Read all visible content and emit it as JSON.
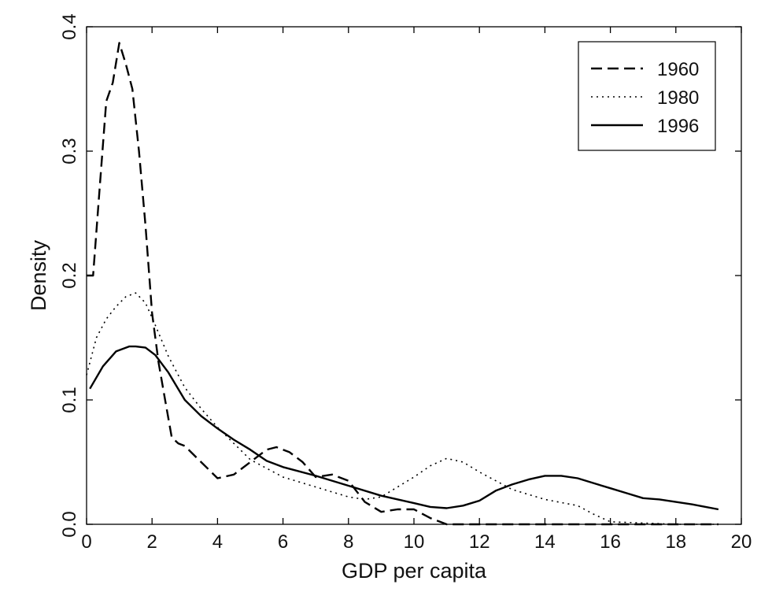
{
  "chart_data": {
    "type": "line",
    "title": "",
    "xlabel": "GDP per capita",
    "ylabel": "Density",
    "xlim": [
      0,
      20
    ],
    "ylim": [
      0,
      0.4
    ],
    "x_ticks": [
      0,
      2,
      4,
      6,
      8,
      10,
      12,
      14,
      16,
      18,
      20
    ],
    "x_tick_labels": [
      "0",
      "2",
      "4",
      "6",
      "8",
      "10",
      "12",
      "14",
      "16",
      "18",
      "20"
    ],
    "y_ticks": [
      0,
      0.1,
      0.2,
      0.3,
      0.4
    ],
    "y_tick_labels": [
      "0.0",
      "0.1",
      "0.2",
      "0.3",
      "0.4"
    ],
    "grid": false,
    "legend_position": "top-right",
    "series": [
      {
        "name": "1960",
        "line_style": "dashed",
        "color": "#000000",
        "x": [
          0.0,
          0.2,
          0.4,
          0.6,
          0.8,
          1.0,
          1.2,
          1.4,
          1.6,
          1.8,
          2.0,
          2.2,
          2.4,
          2.6,
          2.8,
          3.0,
          3.5,
          4.0,
          4.5,
          5.0,
          5.5,
          5.8,
          6.2,
          6.6,
          7.0,
          7.5,
          8.0,
          8.5,
          9.0,
          9.5,
          10.0,
          10.5,
          11.0,
          12.0,
          14.0,
          16.0,
          18.0,
          19.3
        ],
        "values": [
          0.2,
          0.2,
          0.27,
          0.34,
          0.355,
          0.387,
          0.37,
          0.35,
          0.3,
          0.24,
          0.17,
          0.13,
          0.1,
          0.07,
          0.065,
          0.063,
          0.05,
          0.037,
          0.04,
          0.05,
          0.06,
          0.062,
          0.058,
          0.05,
          0.038,
          0.04,
          0.035,
          0.018,
          0.01,
          0.012,
          0.012,
          0.005,
          0.0,
          0.0,
          0.0,
          0.0,
          0.0,
          0.0
        ]
      },
      {
        "name": "1980",
        "line_style": "dotted",
        "color": "#000000",
        "x": [
          0.0,
          0.3,
          0.6,
          0.9,
          1.2,
          1.5,
          1.8,
          2.1,
          2.5,
          3.0,
          3.5,
          4.0,
          4.5,
          5.0,
          6.0,
          7.0,
          8.0,
          8.5,
          9.0,
          9.5,
          10.0,
          10.5,
          11.0,
          11.5,
          12.0,
          12.5,
          13.0,
          14.0,
          15.0,
          15.5,
          16.0,
          17.0,
          18.0,
          19.3
        ],
        "values": [
          0.12,
          0.15,
          0.165,
          0.175,
          0.183,
          0.186,
          0.178,
          0.16,
          0.135,
          0.11,
          0.093,
          0.078,
          0.065,
          0.052,
          0.038,
          0.03,
          0.022,
          0.02,
          0.022,
          0.03,
          0.038,
          0.047,
          0.053,
          0.05,
          0.042,
          0.035,
          0.028,
          0.02,
          0.015,
          0.008,
          0.002,
          0.001,
          0.0,
          0.0
        ]
      },
      {
        "name": "1996",
        "line_style": "solid",
        "color": "#000000",
        "x": [
          0.1,
          0.5,
          0.9,
          1.3,
          1.5,
          1.8,
          2.1,
          2.5,
          3.0,
          3.5,
          4.0,
          4.5,
          5.0,
          5.5,
          6.0,
          7.0,
          8.0,
          9.0,
          10.0,
          10.5,
          11.0,
          11.5,
          12.0,
          12.5,
          13.0,
          13.5,
          14.0,
          14.5,
          15.0,
          15.5,
          16.0,
          16.5,
          17.0,
          17.5,
          18.0,
          18.5,
          19.3
        ],
        "values": [
          0.109,
          0.127,
          0.139,
          0.143,
          0.143,
          0.142,
          0.136,
          0.122,
          0.1,
          0.087,
          0.077,
          0.068,
          0.06,
          0.051,
          0.046,
          0.039,
          0.031,
          0.023,
          0.017,
          0.014,
          0.013,
          0.015,
          0.019,
          0.027,
          0.032,
          0.036,
          0.039,
          0.039,
          0.037,
          0.033,
          0.029,
          0.025,
          0.021,
          0.02,
          0.018,
          0.016,
          0.012
        ]
      }
    ]
  }
}
